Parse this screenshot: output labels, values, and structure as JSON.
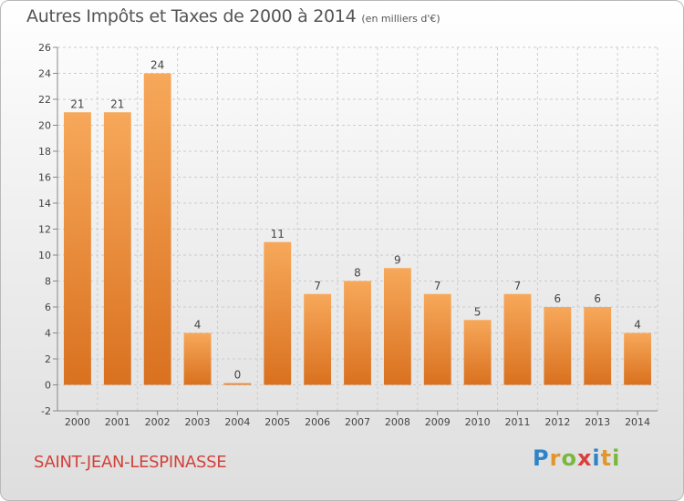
{
  "header": {
    "title": "Autres Impôts et Taxes de 2000 à 2014",
    "subtitle": "(en milliers d'€)"
  },
  "footer": {
    "town": "SAINT-JEAN-LESPINASSE",
    "logo": {
      "p1": "P",
      "p2": "r",
      "p3": "o",
      "p4": "x",
      "p5": "i",
      "p6": "t",
      "p7": "i"
    }
  },
  "chart_data": {
    "type": "bar",
    "title": "Autres Impôts et Taxes de 2000 à 2014",
    "subtitle": "(en milliers d'€)",
    "categories": [
      "2000",
      "2001",
      "2002",
      "2003",
      "2004",
      "2005",
      "2006",
      "2007",
      "2008",
      "2009",
      "2010",
      "2011",
      "2012",
      "2013",
      "2014"
    ],
    "values": [
      21,
      21,
      24,
      4,
      0,
      11,
      7,
      8,
      9,
      7,
      5,
      7,
      6,
      6,
      4
    ],
    "ylim": [
      -2,
      26
    ],
    "yticks": [
      -2,
      0,
      2,
      4,
      6,
      8,
      10,
      12,
      14,
      16,
      18,
      20,
      22,
      24,
      26
    ],
    "grid": true,
    "colors": {
      "bar_light": "#f7a85a",
      "bar_dark": "#d9711f",
      "grid": "#cccccc",
      "axis": "#888888"
    }
  }
}
